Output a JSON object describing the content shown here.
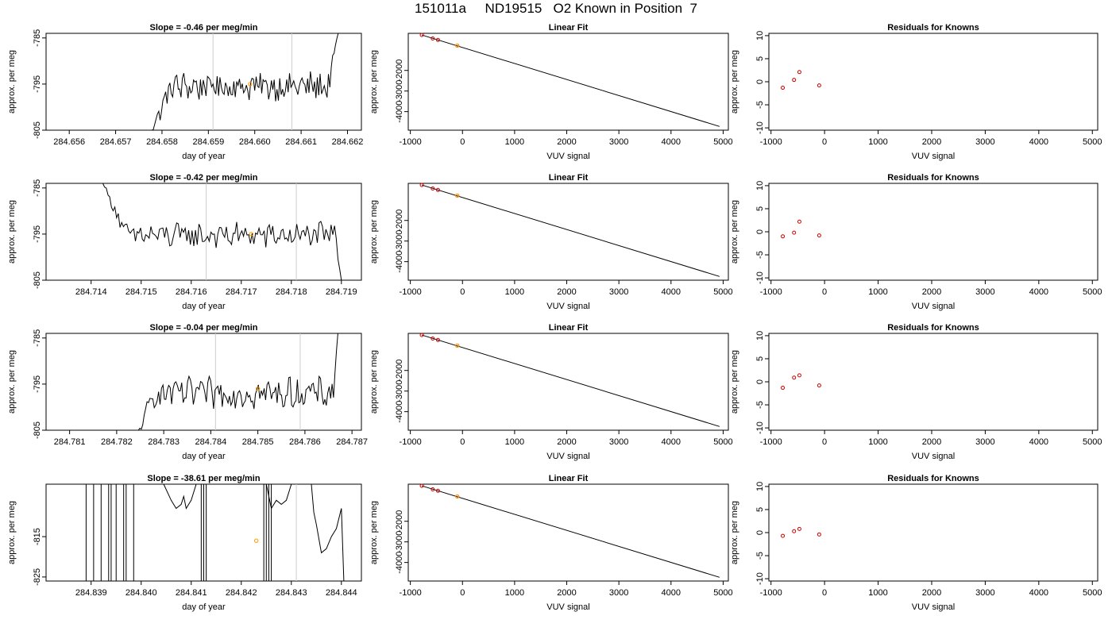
{
  "title": "151011a     ND19515   O2 Known in Position  7",
  "colors": {
    "trace": "#000000",
    "vline": "#cccccc",
    "point": "#cc0000",
    "highlight": "#ff9900"
  },
  "chart_data": [
    {
      "row": 0,
      "panels": [
        {
          "type": "line",
          "title": "Slope =  -0.46  per meg/min",
          "xlabel": "day of year",
          "ylabel": "approx. per meg",
          "xlim": [
            284.6555,
            284.6623
          ],
          "ylim": [
            -805,
            -784
          ],
          "xticks": [
            "284.656",
            "284.657",
            "284.658",
            "284.659",
            "284.660",
            "284.661",
            "284.662"
          ],
          "yticks": [
            "-805",
            "-795",
            "-785"
          ],
          "vlines": [
            284.6591,
            284.6608
          ],
          "trace_start": 284.6576,
          "trace_end": 284.6618,
          "trace_level": -795.5,
          "noise": 1.7,
          "lead_from": -809,
          "lead_until": 284.6582,
          "tail_to": -783,
          "tail_from": 284.6616,
          "marker": {
            "x": 284.6599,
            "y": -795
          }
        },
        {
          "type": "scatter",
          "title": "Linear Fit",
          "xlabel": "VUV signal",
          "ylabel": "approx. per meg",
          "xlim": [
            -1040,
            5100
          ],
          "ylim": [
            -4900,
            -200
          ],
          "xticks": [
            "-1000",
            "0",
            "1000",
            "2000",
            "3000",
            "4000",
            "5000"
          ],
          "yticks": [
            "-2000",
            "-3000",
            "-4000"
          ],
          "line": [
            [
              -780,
              -280
            ],
            [
              4930,
              -4720
            ]
          ],
          "points": [
            {
              "x": -780,
              "y": -280
            },
            {
              "x": -570,
              "y": -450
            },
            {
              "x": -470,
              "y": -520
            },
            {
              "x": -100,
              "y": -795
            }
          ],
          "highlight": {
            "x": -100,
            "y": -795
          }
        },
        {
          "type": "scatter",
          "title": "Residuals for Knowns",
          "xlabel": "VUV signal",
          "ylabel": "approx. per meg",
          "xlim": [
            -1040,
            5100
          ],
          "ylim": [
            -10.5,
            10.5
          ],
          "xticks": [
            "-1000",
            "0",
            "1000",
            "2000",
            "3000",
            "4000",
            "5000"
          ],
          "yticks": [
            "-10",
            "-5",
            "0",
            "5",
            "10"
          ],
          "points": [
            {
              "x": -780,
              "y": -1.3
            },
            {
              "x": -570,
              "y": 0.4
            },
            {
              "x": -470,
              "y": 2.1
            },
            {
              "x": -100,
              "y": -0.8
            }
          ]
        }
      ]
    },
    {
      "row": 1,
      "panels": [
        {
          "type": "line",
          "title": "Slope =  -0.42  per meg/min",
          "xlabel": "day of year",
          "ylabel": "approx. per meg",
          "xlim": [
            284.7131,
            284.7194
          ],
          "ylim": [
            -805,
            -784
          ],
          "xticks": [
            "284.714",
            "284.715",
            "284.716",
            "284.717",
            "284.718",
            "284.719"
          ],
          "yticks": [
            "-805",
            "-795",
            "-785"
          ],
          "vlines": [
            284.7163,
            284.7181
          ],
          "trace_start": 284.7142,
          "trace_end": 284.719,
          "trace_level": -795.3,
          "noise": 1.5,
          "lead_from": -783,
          "lead_until": 284.7147,
          "tail_to": -806,
          "tail_from": 284.7189,
          "marker": {
            "x": 284.7172,
            "y": -795
          }
        },
        {
          "type": "scatter",
          "title": "Linear Fit",
          "xlabel": "VUV signal",
          "ylabel": "approx. per meg",
          "xlim": [
            -1040,
            5100
          ],
          "ylim": [
            -4900,
            -200
          ],
          "xticks": [
            "-1000",
            "0",
            "1000",
            "2000",
            "3000",
            "4000",
            "5000"
          ],
          "yticks": [
            "-2000",
            "-3000",
            "-4000"
          ],
          "line": [
            [
              -780,
              -280
            ],
            [
              4930,
              -4720
            ]
          ],
          "points": [
            {
              "x": -780,
              "y": -280
            },
            {
              "x": -570,
              "y": -450
            },
            {
              "x": -470,
              "y": -520
            },
            {
              "x": -100,
              "y": -795
            }
          ],
          "highlight": {
            "x": -100,
            "y": -795
          }
        },
        {
          "type": "scatter",
          "title": "Residuals for Knowns",
          "xlabel": "VUV signal",
          "ylabel": "approx. per meg",
          "xlim": [
            -1040,
            5100
          ],
          "ylim": [
            -10.5,
            10.5
          ],
          "xticks": [
            "-1000",
            "0",
            "1000",
            "2000",
            "3000",
            "4000",
            "5000"
          ],
          "yticks": [
            "-10",
            "-5",
            "0",
            "5",
            "10"
          ],
          "points": [
            {
              "x": -780,
              "y": -1.0
            },
            {
              "x": -570,
              "y": -0.2
            },
            {
              "x": -470,
              "y": 2.2
            },
            {
              "x": -100,
              "y": -0.8
            }
          ]
        }
      ]
    },
    {
      "row": 2,
      "panels": [
        {
          "type": "line",
          "title": "Slope =  -0.04  per meg/min",
          "xlabel": "day of year",
          "ylabel": "approx. per meg",
          "xlim": [
            284.7805,
            284.7872
          ],
          "ylim": [
            -805,
            -784
          ],
          "xticks": [
            "284.781",
            "284.782",
            "284.783",
            "284.784",
            "284.785",
            "284.786",
            "284.787"
          ],
          "yticks": [
            "-805",
            "-795",
            "-785"
          ],
          "vlines": [
            284.7841,
            284.7859
          ],
          "trace_start": 284.7824,
          "trace_end": 284.7867,
          "trace_level": -797.0,
          "noise": 1.8,
          "lead_from": -807,
          "lead_until": 284.7828,
          "tail_to": -784,
          "tail_from": 284.7866,
          "marker": {
            "x": 284.785,
            "y": -796
          }
        },
        {
          "type": "scatter",
          "title": "Linear Fit",
          "xlabel": "VUV signal",
          "ylabel": "approx. per meg",
          "xlim": [
            -1040,
            5100
          ],
          "ylim": [
            -4900,
            -200
          ],
          "xticks": [
            "-1000",
            "0",
            "1000",
            "2000",
            "3000",
            "4000",
            "5000"
          ],
          "yticks": [
            "-2000",
            "-3000",
            "-4000"
          ],
          "line": [
            [
              -780,
              -280
            ],
            [
              4930,
              -4720
            ]
          ],
          "points": [
            {
              "x": -780,
              "y": -280
            },
            {
              "x": -570,
              "y": -450
            },
            {
              "x": -470,
              "y": -520
            },
            {
              "x": -100,
              "y": -795
            }
          ],
          "highlight": {
            "x": -100,
            "y": -795
          }
        },
        {
          "type": "scatter",
          "title": "Residuals for Knowns",
          "xlabel": "VUV signal",
          "ylabel": "approx. per meg",
          "xlim": [
            -1040,
            5100
          ],
          "ylim": [
            -10.5,
            10.5
          ],
          "xticks": [
            "-1000",
            "0",
            "1000",
            "2000",
            "3000",
            "4000",
            "5000"
          ],
          "yticks": [
            "-10",
            "-5",
            "0",
            "5",
            "10"
          ],
          "points": [
            {
              "x": -780,
              "y": -1.3
            },
            {
              "x": -570,
              "y": 0.9
            },
            {
              "x": -470,
              "y": 1.4
            },
            {
              "x": -100,
              "y": -0.8
            }
          ]
        }
      ]
    },
    {
      "row": 3,
      "panels": [
        {
          "type": "line",
          "title": "Slope =  -38.61  per meg/min",
          "xlabel": "day of year",
          "ylabel": "approx. per meg",
          "xlim": [
            284.8381,
            284.8444
          ],
          "ylim": [
            -826,
            -802
          ],
          "xticks": [
            "284.839",
            "284.840",
            "284.841",
            "284.842",
            "284.843",
            "284.844"
          ],
          "yticks": [
            "-825",
            "-815"
          ],
          "vlines": [
            284.8413,
            284.8431
          ],
          "spikes": [
            284.8389,
            284.83905,
            284.8392,
            284.83935,
            284.8394,
            284.8395,
            284.83965,
            284.8397,
            284.83985,
            284.8412,
            284.84125,
            284.8413,
            284.84245,
            284.8425,
            284.84255,
            284.8426
          ],
          "segments": [
            [
              [
                284.84045,
                -800
              ],
              [
                284.8406,
                -806
              ],
              [
                284.8407,
                -808
              ],
              [
                284.8408,
                -807
              ],
              [
                284.84085,
                -805
              ],
              [
                284.8409,
                -808
              ],
              [
                284.841,
                -806
              ],
              [
                284.8411,
                -800
              ]
            ],
            [
              [
                284.8425,
                -800
              ],
              [
                284.8426,
                -808
              ],
              [
                284.8427,
                -806
              ],
              [
                284.8428,
                -807
              ],
              [
                284.8429,
                -806
              ],
              [
                284.843,
                -800
              ]
            ],
            [
              [
                284.8434,
                -800
              ],
              [
                284.84345,
                -809
              ],
              [
                284.8435,
                -812
              ],
              [
                284.8436,
                -819
              ],
              [
                284.8437,
                -818
              ],
              [
                284.8438,
                -815
              ],
              [
                284.8439,
                -813
              ],
              [
                284.844,
                -808
              ],
              [
                284.84405,
                -827
              ]
            ]
          ],
          "marker": {
            "x": 284.8423,
            "y": -816
          }
        },
        {
          "type": "scatter",
          "title": "Linear Fit",
          "xlabel": "VUV signal",
          "ylabel": "approx. per meg",
          "xlim": [
            -1040,
            5100
          ],
          "ylim": [
            -4900,
            -200
          ],
          "xticks": [
            "-1000",
            "0",
            "1000",
            "2000",
            "3000",
            "4000",
            "5000"
          ],
          "yticks": [
            "-2000",
            "-3000",
            "-4000"
          ],
          "line": [
            [
              -780,
              -280
            ],
            [
              4930,
              -4720
            ]
          ],
          "points": [
            {
              "x": -780,
              "y": -280
            },
            {
              "x": -570,
              "y": -450
            },
            {
              "x": -470,
              "y": -520
            },
            {
              "x": -100,
              "y": -795
            }
          ],
          "highlight": {
            "x": -100,
            "y": -795
          }
        },
        {
          "type": "scatter",
          "title": "Residuals for Knowns",
          "xlabel": "VUV signal",
          "ylabel": "approx. per meg",
          "xlim": [
            -1040,
            5100
          ],
          "ylim": [
            -10.5,
            10.5
          ],
          "xticks": [
            "-1000",
            "0",
            "1000",
            "2000",
            "3000",
            "4000",
            "5000"
          ],
          "yticks": [
            "-10",
            "-5",
            "0",
            "5",
            "10"
          ],
          "points": [
            {
              "x": -780,
              "y": -0.7
            },
            {
              "x": -570,
              "y": 0.3
            },
            {
              "x": -470,
              "y": 0.8
            },
            {
              "x": -100,
              "y": -0.4
            }
          ]
        }
      ]
    }
  ]
}
